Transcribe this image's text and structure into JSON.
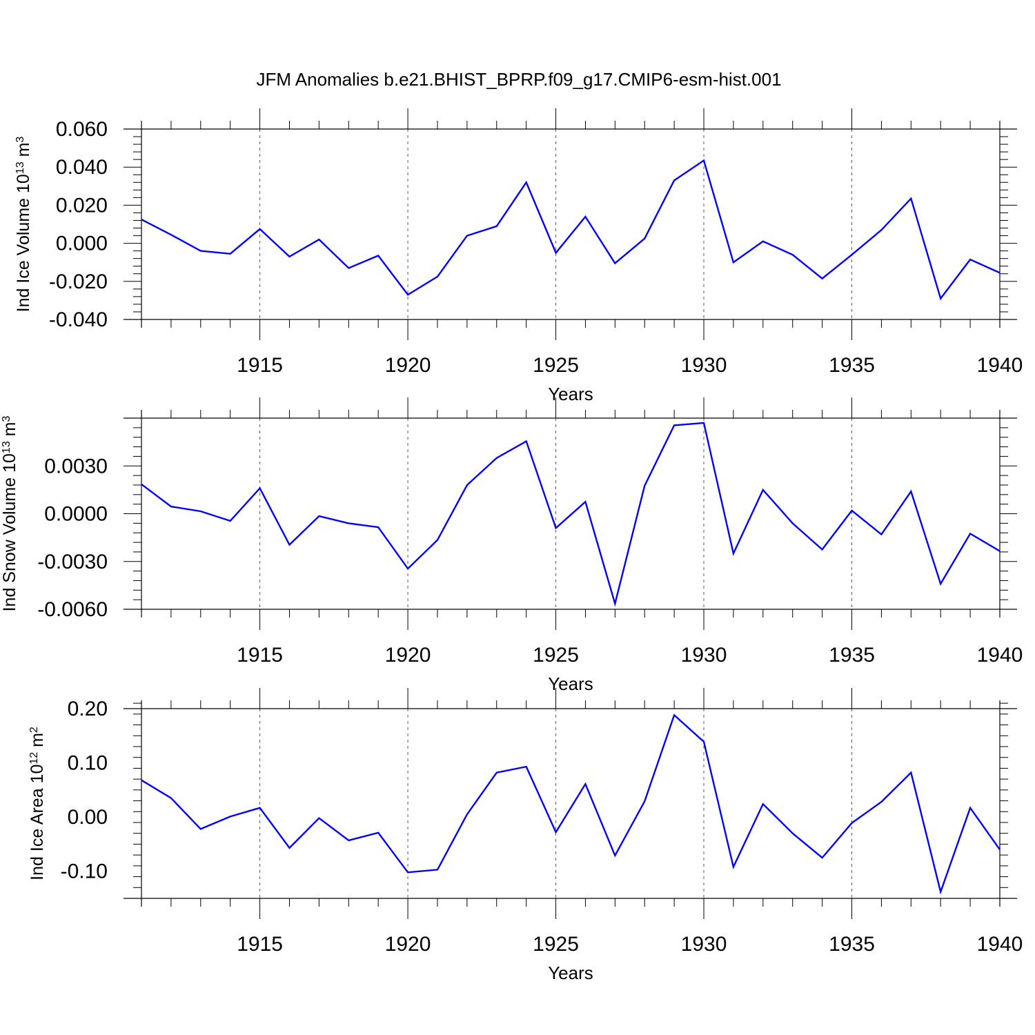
{
  "title": "JFM Anomalies b.e21.BHIST_BPRP.f09_g17.CMIP6-esm-hist.001",
  "chart_data": [
    {
      "type": "line",
      "ylabel": {
        "main": "Ind Ice Volume 10",
        "exponent": "13",
        "unit": " m",
        "unit_exponent": "3"
      },
      "xlabel": "Years",
      "xlim": [
        1911,
        1940
      ],
      "ylim": [
        -0.04,
        0.06
      ],
      "yticks": [
        -0.04,
        -0.02,
        0.0,
        0.02,
        0.04,
        0.06
      ],
      "ytick_labels": [
        "-0.040",
        "-0.020",
        "0.000",
        "0.020",
        "0.040",
        "0.060"
      ],
      "xticks": [
        1915,
        1920,
        1925,
        1930,
        1935,
        1940
      ],
      "xtick_labels": [
        "1915",
        "1920",
        "1925",
        "1930",
        "1935",
        "1940"
      ],
      "grid": "vertical dashed at major x ticks",
      "series": [
        {
          "color": "#0000ff",
          "x": [
            1911,
            1912,
            1913,
            1914,
            1915,
            1916,
            1917,
            1918,
            1919,
            1920,
            1921,
            1922,
            1923,
            1924,
            1925,
            1926,
            1927,
            1928,
            1929,
            1930,
            1931,
            1932,
            1933,
            1934,
            1935,
            1936,
            1937,
            1938,
            1939,
            1940
          ],
          "values": [
            0.0125,
            0.0045,
            -0.004,
            -0.0055,
            0.0075,
            -0.007,
            0.002,
            -0.013,
            -0.0065,
            -0.027,
            -0.0175,
            0.004,
            0.009,
            0.032,
            -0.005,
            0.014,
            -0.0105,
            0.0025,
            0.033,
            0.0435,
            -0.01,
            0.001,
            -0.006,
            -0.0185,
            -0.006,
            0.007,
            0.0235,
            -0.029,
            -0.0085,
            -0.0155
          ]
        }
      ]
    },
    {
      "type": "line",
      "ylabel": {
        "main": "Ind Snow Volume 10",
        "exponent": "13",
        "unit": " m",
        "unit_exponent": "3"
      },
      "xlabel": "Years",
      "xlim": [
        1911,
        1940
      ],
      "ylim": [
        -0.006,
        0.006
      ],
      "yticks": [
        -0.006,
        -0.003,
        0.0,
        0.003
      ],
      "ytick_labels": [
        "-0.0060",
        "-0.0030",
        "0.0000",
        "0.0030"
      ],
      "xticks": [
        1915,
        1920,
        1925,
        1930,
        1935,
        1940
      ],
      "xtick_labels": [
        "1915",
        "1920",
        "1925",
        "1930",
        "1935",
        "1940"
      ],
      "grid": "vertical dashed at major x ticks",
      "series": [
        {
          "color": "#0000ff",
          "x": [
            1911,
            1912,
            1913,
            1914,
            1915,
            1916,
            1917,
            1918,
            1919,
            1920,
            1921,
            1922,
            1923,
            1924,
            1925,
            1926,
            1927,
            1928,
            1929,
            1930,
            1931,
            1932,
            1933,
            1934,
            1935,
            1936,
            1937,
            1938,
            1939,
            1940
          ],
          "values": [
            0.00185,
            0.00045,
            0.00015,
            -0.00045,
            0.0016,
            -0.00195,
            -0.00015,
            -0.0006,
            -0.00085,
            -0.00345,
            -0.00165,
            0.0018,
            0.0035,
            0.00455,
            -0.0009,
            0.00075,
            -0.00565,
            0.00175,
            0.00555,
            0.0057,
            -0.0025,
            0.0015,
            -0.0006,
            -0.00225,
            0.0002,
            -0.0013,
            0.0014,
            -0.0044,
            -0.00125,
            -0.00235
          ]
        }
      ]
    },
    {
      "type": "line",
      "ylabel": {
        "main": "Ind Ice Area 10",
        "exponent": "12",
        "unit": " m",
        "unit_exponent": "2"
      },
      "xlabel": "Years",
      "xlim": [
        1911,
        1940
      ],
      "ylim": [
        -0.15,
        0.2
      ],
      "yticks": [
        -0.1,
        0.0,
        0.1,
        0.2
      ],
      "ytick_labels": [
        "-0.10",
        "0.00",
        "0.10",
        "0.20"
      ],
      "xticks": [
        1915,
        1920,
        1925,
        1930,
        1935,
        1940
      ],
      "xtick_labels": [
        "1915",
        "1920",
        "1925",
        "1930",
        "1935",
        "1940"
      ],
      "grid": "vertical dashed at major x ticks",
      "series": [
        {
          "color": "#0000ff",
          "x": [
            1911,
            1912,
            1913,
            1914,
            1915,
            1916,
            1917,
            1918,
            1919,
            1920,
            1921,
            1922,
            1923,
            1924,
            1925,
            1926,
            1927,
            1928,
            1929,
            1930,
            1931,
            1932,
            1933,
            1934,
            1935,
            1936,
            1937,
            1938,
            1939,
            1940
          ],
          "values": [
            0.068,
            0.035,
            -0.022,
            0.001,
            0.017,
            -0.057,
            -0.002,
            -0.043,
            -0.029,
            -0.102,
            -0.097,
            0.005,
            0.082,
            0.093,
            -0.028,
            0.061,
            -0.071,
            0.029,
            0.188,
            0.139,
            -0.092,
            0.024,
            -0.03,
            -0.075,
            -0.011,
            0.028,
            0.082,
            -0.138,
            0.017,
            -0.06
          ]
        }
      ]
    }
  ]
}
